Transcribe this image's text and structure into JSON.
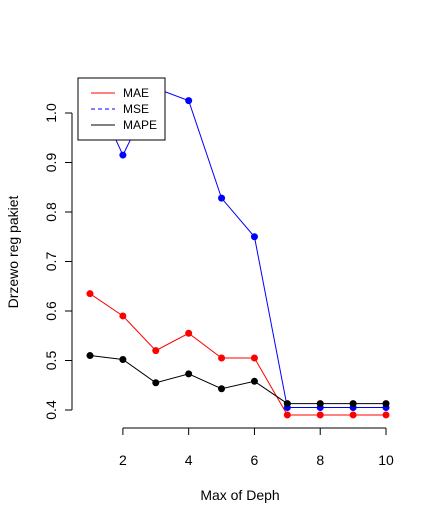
{
  "chart_data": {
    "type": "line",
    "title": "",
    "xlabel": "Max of Deph",
    "ylabel": "Drzewo reg pakiet",
    "x": [
      1,
      2,
      3,
      4,
      5,
      6,
      7,
      8,
      9,
      10
    ],
    "xlim": [
      1,
      10
    ],
    "ylim": [
      0.4,
      1.0
    ],
    "xticks": [
      "2",
      "4",
      "6",
      "8",
      "10"
    ],
    "yticks": [
      "0.4",
      "0.5",
      "0.6",
      "0.7",
      "0.8",
      "0.9",
      "1.0"
    ],
    "grid": false,
    "legend_position": "top-left",
    "series": [
      {
        "name": "MAE",
        "color": "#ff0000",
        "line_style": "solid",
        "values": [
          0.635,
          0.59,
          0.52,
          0.555,
          0.505,
          0.505,
          0.39,
          0.39,
          0.39,
          0.39
        ]
      },
      {
        "name": "MSE",
        "color": "#0000ff",
        "line_style": "dashed",
        "values": [
          1.06,
          0.915,
          1.05,
          1.025,
          0.828,
          0.75,
          0.405,
          0.405,
          0.405,
          0.405
        ]
      },
      {
        "name": "MAPE",
        "color": "#000000",
        "line_style": "solid",
        "values": [
          0.51,
          0.502,
          0.455,
          0.473,
          0.443,
          0.458,
          0.413,
          0.413,
          0.413,
          0.413
        ]
      }
    ],
    "legend": [
      {
        "label": "MAE",
        "color": "#ff0000",
        "line_style": "solid"
      },
      {
        "label": "MSE",
        "color": "#0000ff",
        "line_style": "dashed"
      },
      {
        "label": "MAPE",
        "color": "#000000",
        "line_style": "solid"
      }
    ]
  }
}
